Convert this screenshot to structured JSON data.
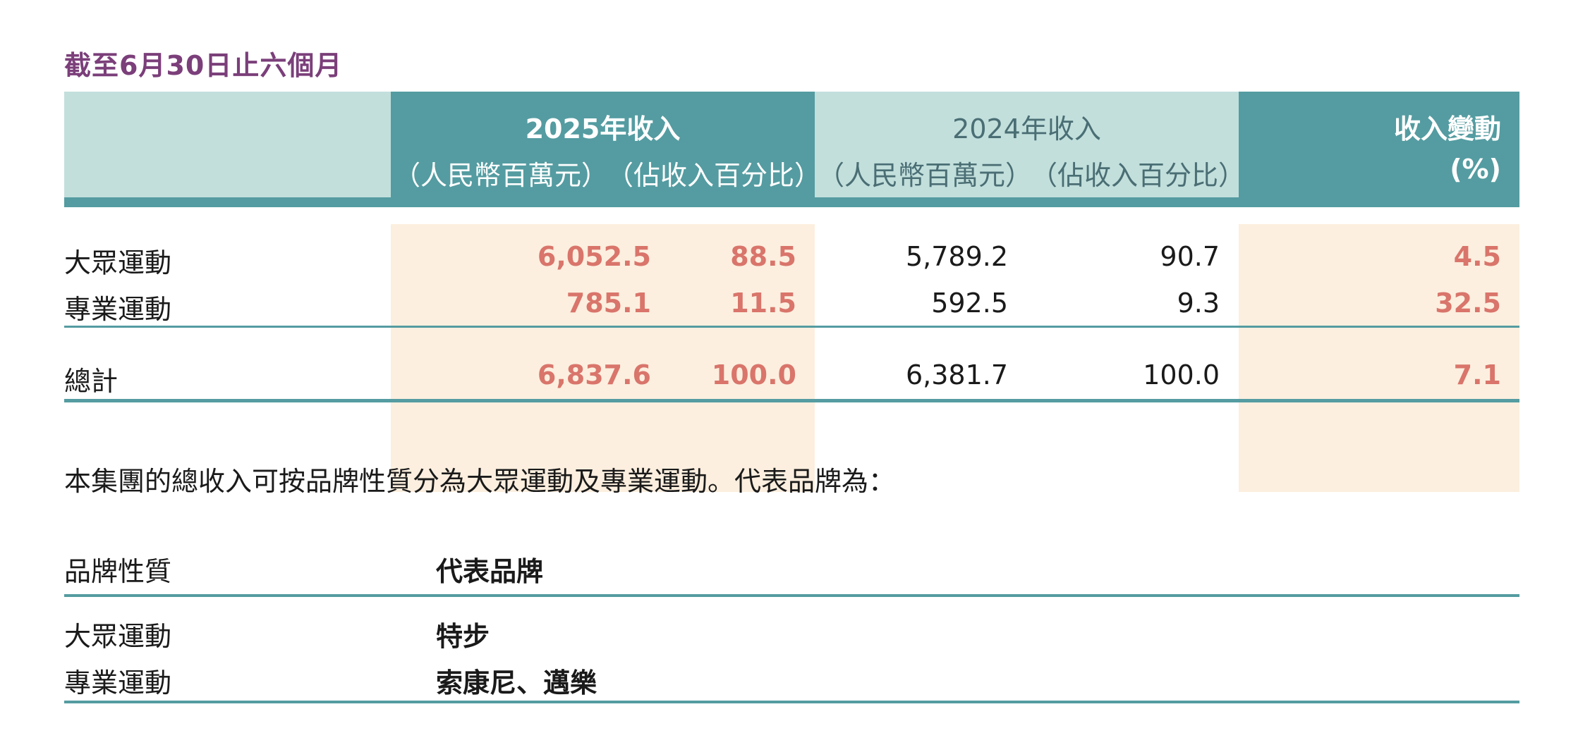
{
  "period_title": "截至6月30日止六個月",
  "revenue_table": {
    "headers": {
      "y2025": {
        "title": "2025年收入",
        "unit_rmb": "（人民幣百萬元）",
        "unit_pct": "（佔收入百分比）"
      },
      "y2024": {
        "title": "2024年收入",
        "unit_rmb": "（人民幣百萬元）",
        "unit_pct": "（佔收入百分比）"
      },
      "change": {
        "title": "收入變動",
        "unit": "(%)"
      }
    },
    "rows": [
      {
        "label": "大眾運動",
        "rev_2025": "6,052.5",
        "pct_2025": "88.5",
        "rev_2024": "5,789.2",
        "pct_2024": "90.7",
        "change": "4.5"
      },
      {
        "label": "專業運動",
        "rev_2025": "785.1",
        "pct_2025": "11.5",
        "rev_2024": "592.5",
        "pct_2024": "9.3",
        "change": "32.5"
      }
    ],
    "total": {
      "label": "總計",
      "rev_2025": "6,837.6",
      "pct_2025": "100.0",
      "rev_2024": "6,381.7",
      "pct_2024": "100.0",
      "change": "7.1"
    }
  },
  "description": "本集團的總收入可按品牌性質分為大眾運動及專業運動。代表品牌為：",
  "brand_table": {
    "header_label": "品牌性質",
    "header_value": "代表品牌",
    "rows": [
      {
        "label": "大眾運動",
        "value": "特步"
      },
      {
        "label": "專業運動",
        "value": "索康尼、邁樂"
      }
    ]
  },
  "colors": {
    "teal": "#549ca1",
    "light_teal": "#c2dfdc",
    "highlight_band": "#fcefdf",
    "highlight_text": "#d9756b",
    "title_purple": "#7b3f7a"
  }
}
